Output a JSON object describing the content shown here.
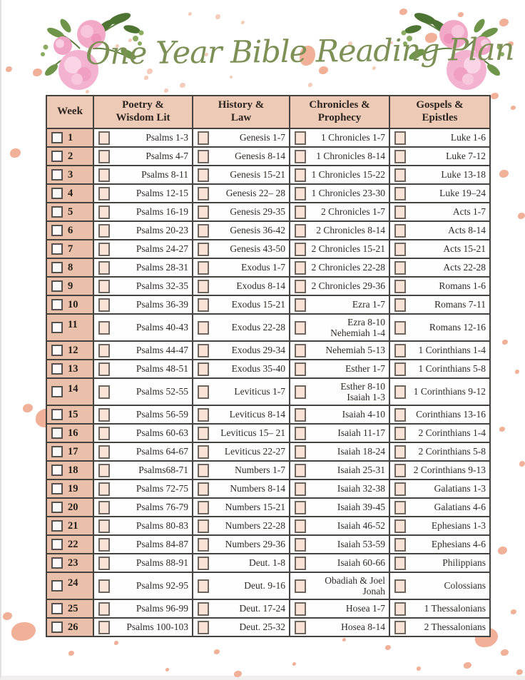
{
  "title": "One Year Bible Reading Plan",
  "colors": {
    "title_green": "#7d9055",
    "header_bg": "#edcab5",
    "week_bg": "#e9c0a9",
    "checkbox_fill": "#f9e3d7",
    "table_border": "#454340",
    "splatter": "#f1b098",
    "splatter_light": "#f5cbb9"
  },
  "table": {
    "columns": [
      "Week",
      "Poetry &\nWisdom Lit",
      "History &\nLaw",
      "Chronicles &\nProphecy",
      "Gospels &\nEpistles"
    ],
    "rows": [
      {
        "week": "1",
        "poetry": "Psalms 1-3",
        "history": "Genesis 1-7",
        "chronicles": "1 Chronicles  1-7",
        "gospels": "Luke 1-6"
      },
      {
        "week": "2",
        "poetry": "Psalms 4-7",
        "history": "Genesis 8-14",
        "chronicles": "1 Chronicles 8-14",
        "gospels": "Luke 7-12"
      },
      {
        "week": "3",
        "poetry": "Psalms 8-11",
        "history": "Genesis 15-21",
        "chronicles": "1 Chronicles 15-22",
        "gospels": "Luke  13-18"
      },
      {
        "week": "4",
        "poetry": "Psalms 12-15",
        "history": "Genesis 22– 28",
        "chronicles": "1 Chronicles 23-30",
        "gospels": "Luke  19–24"
      },
      {
        "week": "5",
        "poetry": "Psalms 16-19",
        "history": "Genesis 29-35",
        "chronicles": "2 Chronicles 1-7",
        "gospels": "Acts 1-7"
      },
      {
        "week": "6",
        "poetry": "Psalms 20-23",
        "history": "Genesis 36-42",
        "chronicles": "2 Chronicles 8-14",
        "gospels": "Acts 8-14"
      },
      {
        "week": "7",
        "poetry": "Psalms 24-27",
        "history": "Genesis 43-50",
        "chronicles": "2 Chronicles 15-21",
        "gospels": "Acts 15-21"
      },
      {
        "week": "8",
        "poetry": "Psalms 28-31",
        "history": "Exodus  1-7",
        "chronicles": "2 Chronicles 22-28",
        "gospels": "Acts 22-28"
      },
      {
        "week": "9",
        "poetry": "Psalms 32-35",
        "history": "Exodus  8-14",
        "chronicles": "2 Chronicles 29-36",
        "gospels": "Romans  1-6"
      },
      {
        "week": "10",
        "poetry": "Psalms 36-39",
        "history": "Exodus 15-21",
        "chronicles": "Ezra 1-7",
        "gospels": "Romans  7-11"
      },
      {
        "week": "11",
        "poetry": "Psalms 40-43",
        "history": "Exodus 22-28",
        "chronicles": "Ezra 8-10\nNehemiah 1-4",
        "gospels": "Romans 12-16"
      },
      {
        "week": "12",
        "poetry": "Psalms 44-47",
        "history": "Exodus 29-34",
        "chronicles": "Nehemiah 5-13",
        "gospels": "1 Corinthians 1-4"
      },
      {
        "week": "13",
        "poetry": "Psalms 48-51",
        "history": "Exodus 35-40",
        "chronicles": "Esther 1-7",
        "gospels": "1 Corinthians 5-8"
      },
      {
        "week": "14",
        "poetry": "Psalms 52-55",
        "history": "Leviticus 1-7",
        "chronicles": "Esther 8-10\nIsaiah 1-3",
        "gospels": "1 Corinthians 9-12"
      },
      {
        "week": "15",
        "poetry": "Psalms 56-59",
        "history": "Leviticus  8-14",
        "chronicles": "Isaiah 4-10",
        "gospels": "Corinthians 13-16"
      },
      {
        "week": "16",
        "poetry": "Psalms 60-63",
        "history": "Leviticus 15– 21",
        "chronicles": "Isaiah 11-17",
        "gospels": "2 Corinthians 1-4"
      },
      {
        "week": "17",
        "poetry": "Psalms 64-67",
        "history": "Leviticus 22-27",
        "chronicles": "Isaiah 18-24",
        "gospels": "2 Corinthians 5-8"
      },
      {
        "week": "18",
        "poetry": "Psalms68-71",
        "history": "Numbers 1-7",
        "chronicles": "Isaiah 25-31",
        "gospels": "2 Corinthians 9-13"
      },
      {
        "week": "19",
        "poetry": "Psalms 72-75",
        "history": "Numbers 8-14",
        "chronicles": "Isaiah 32-38",
        "gospels": "Galatians 1-3"
      },
      {
        "week": "20",
        "poetry": "Psalms 76-79",
        "history": "Numbers 15-21",
        "chronicles": "Isaiah 39-45",
        "gospels": "Galatians 4-6"
      },
      {
        "week": "21",
        "poetry": "Psalms 80-83",
        "history": "Numbers  22-28",
        "chronicles": "Isaiah 46-52",
        "gospels": "Ephesians 1-3"
      },
      {
        "week": "22",
        "poetry": "Psalms 84-87",
        "history": "Numbers  29-36",
        "chronicles": "Isaiah 53-59",
        "gospels": "Ephesians 4-6"
      },
      {
        "week": "23",
        "poetry": "Psalms 88-91",
        "history": "Deut. 1-8",
        "chronicles": "Isaiah 60-66",
        "gospels": "Philippians"
      },
      {
        "week": "24",
        "poetry": "Psalms 92-95",
        "history": "Deut. 9-16",
        "chronicles": "Obadiah & Joel\nJonah",
        "gospels": "Colossians"
      },
      {
        "week": "25",
        "poetry": "Psalms 96-99",
        "history": "Deut. 17-24",
        "chronicles": "Hosea 1-7",
        "gospels": "1 Thessalonians"
      },
      {
        "week": "26",
        "poetry": "Psalms 100-103",
        "history": "Deut. 25-32",
        "chronicles": "Hosea 8-14",
        "gospels": "2 Thessalonians"
      }
    ]
  }
}
